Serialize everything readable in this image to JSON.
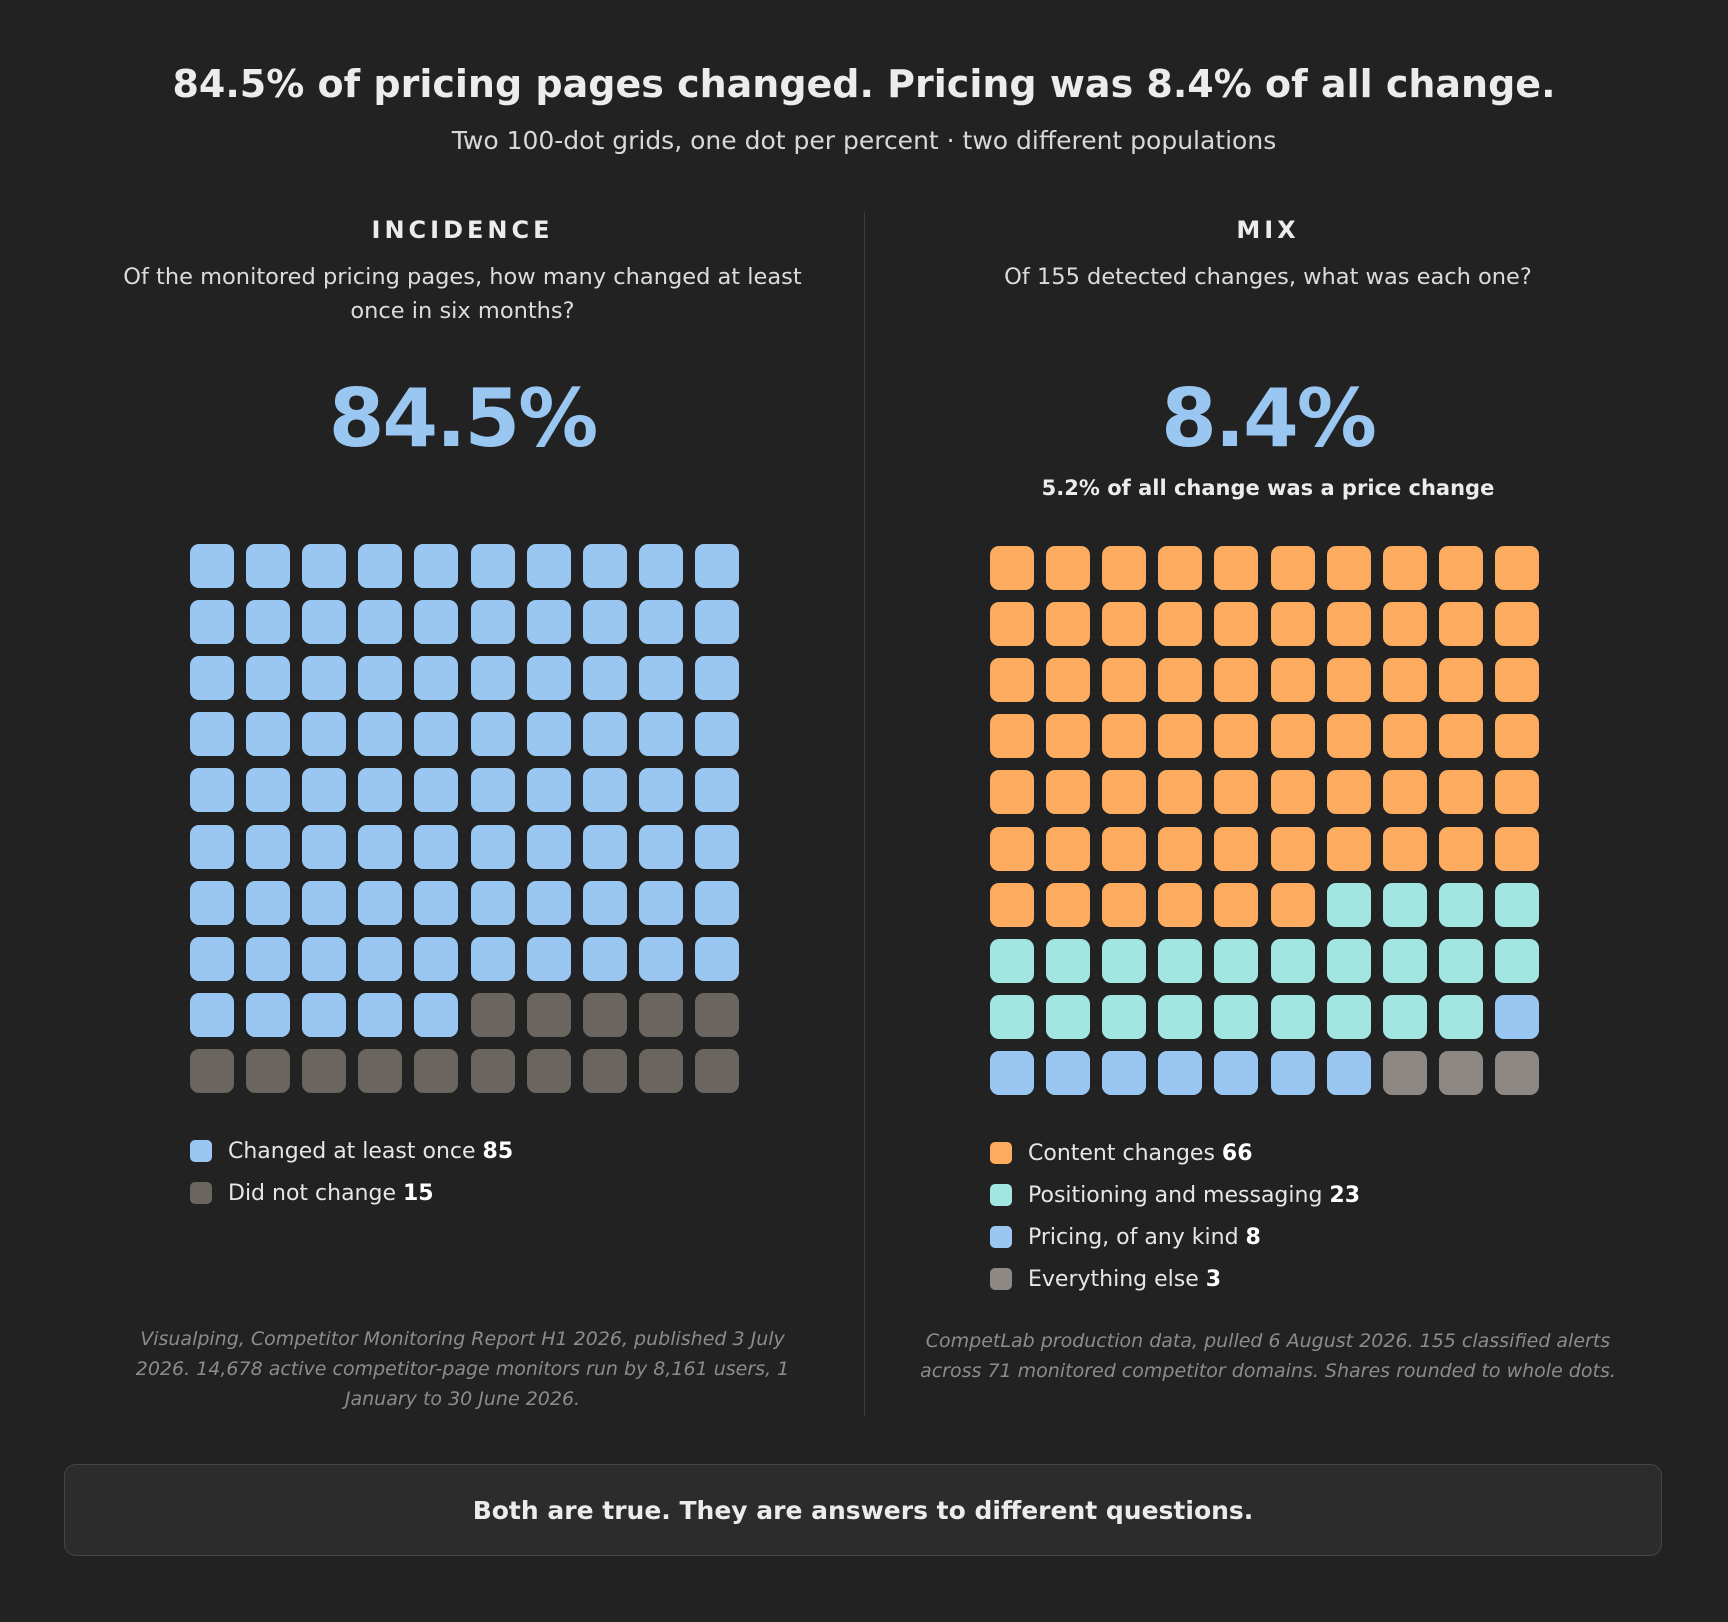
{
  "header": {
    "title": "84.5% of pricing pages changed. Pricing was 8.4% of all change.",
    "subtitle": "Two 100-dot grids, one dot per percent · two different populations"
  },
  "incidence": {
    "label": "INCIDENCE",
    "question": "Of the monitored pricing pages, how many changed at least once in six months?",
    "big_value": "84.5%",
    "source": "Visualping, Competitor Monitoring Report H1 2026, published 3 July 2026. 14,678 active competitor-page monitors run by 8,161 users, 1 January to 30 June 2026."
  },
  "mix": {
    "label": "MIX",
    "question": "Of 155 detected changes, what was each one?",
    "big_value": "8.4%",
    "sub_value": "5.2% of all change was a price change",
    "source": "CompetLab production data, pulled 6 August 2026. 155 classified alerts across 71 monitored competitor domains. Shares rounded to whole dots."
  },
  "chart_data": [
    {
      "type": "waffle",
      "rows": 10,
      "cols": 10,
      "series": [
        {
          "name": "Changed at least once",
          "value": 85,
          "color": "#9ac7f2"
        },
        {
          "name": "Did not change",
          "value": 15,
          "color": "#6b6560"
        }
      ]
    },
    {
      "type": "waffle",
      "rows": 10,
      "cols": 10,
      "series": [
        {
          "name": "Content changes",
          "value": 66,
          "color": "#fdab5f"
        },
        {
          "name": "Positioning and messaging",
          "value": 23,
          "color": "#a2e6e1"
        },
        {
          "name": "Pricing, of any kind",
          "value": 8,
          "color": "#9ac7f2"
        },
        {
          "name": "Everything else",
          "value": 3,
          "color": "#8d8883"
        }
      ]
    }
  ],
  "footer": {
    "text": "Both are true. They are answers to different questions."
  }
}
